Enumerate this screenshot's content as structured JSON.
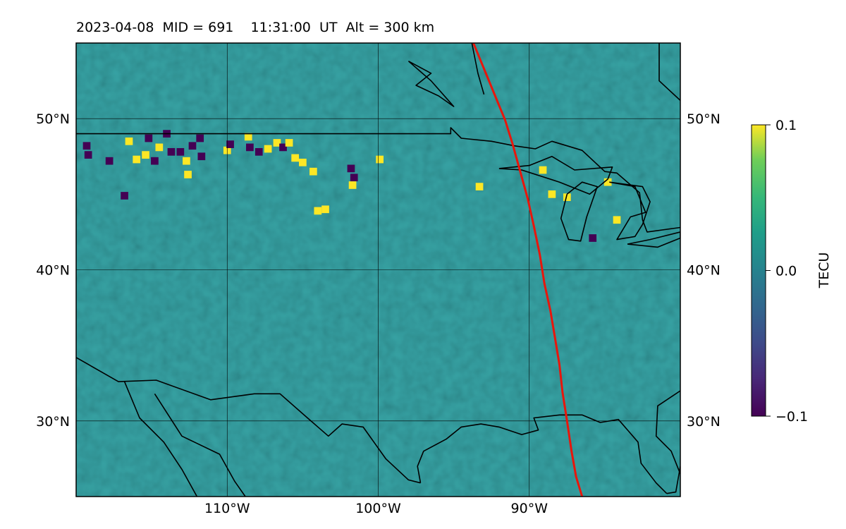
{
  "title": "2023-04-08  MID = 691    11:31:00  UT  Alt = 300 km",
  "map": {
    "lon_range": [
      -120,
      -80
    ],
    "lat_range": [
      25,
      55
    ],
    "lon_ticks": [
      {
        "value": -110,
        "label": "110°W"
      },
      {
        "value": -100,
        "label": "100°W"
      },
      {
        "value": -90,
        "label": "90°W"
      }
    ],
    "lat_ticks": [
      {
        "value": 50,
        "label": "50°N"
      },
      {
        "value": 40,
        "label": "40°N"
      },
      {
        "value": 30,
        "label": "30°N"
      }
    ],
    "background_color": "#2d8a8c",
    "totality_path_color": "#e8160c",
    "totality_path": [
      [
        -93.7,
        55.0
      ],
      [
        -93.0,
        53.3
      ],
      [
        -92.3,
        51.6
      ],
      [
        -91.6,
        49.9
      ],
      [
        -91.1,
        48.3
      ],
      [
        -90.6,
        46.5
      ],
      [
        -90.1,
        44.7
      ],
      [
        -89.7,
        42.9
      ],
      [
        -89.3,
        41.0
      ],
      [
        -89.0,
        39.1
      ],
      [
        -88.6,
        37.3
      ],
      [
        -88.3,
        35.5
      ],
      [
        -88.0,
        33.7
      ],
      [
        -87.8,
        31.9
      ],
      [
        -87.5,
        30.0
      ],
      [
        -87.2,
        28.0
      ],
      [
        -86.9,
        26.3
      ],
      [
        -86.5,
        25.0
      ]
    ],
    "borders": [
      [
        [
          -120,
          49.0
        ],
        [
          -95.2,
          49.0
        ],
        [
          -95.2,
          49.4
        ],
        [
          -94.5,
          48.7
        ],
        [
          -92.5,
          48.5
        ],
        [
          -91.0,
          48.2
        ],
        [
          -89.6,
          48.0
        ],
        [
          -88.5,
          48.5
        ],
        [
          -86.5,
          47.9
        ],
        [
          -85.0,
          46.5
        ],
        [
          -84.2,
          46.4
        ],
        [
          -82.7,
          45.1
        ],
        [
          -82.5,
          43.3
        ],
        [
          -82.2,
          42.5
        ],
        [
          -80,
          42.8
        ]
      ],
      [
        [
          -120,
          34.2
        ],
        [
          -117.2,
          32.6
        ],
        [
          -114.7,
          32.7
        ],
        [
          -111.1,
          31.4
        ],
        [
          -108.2,
          31.8
        ],
        [
          -106.5,
          31.8
        ],
        [
          -104.8,
          30.3
        ],
        [
          -103.3,
          29.0
        ],
        [
          -102.4,
          29.8
        ],
        [
          -101.0,
          29.6
        ],
        [
          -99.5,
          27.5
        ],
        [
          -98.0,
          26.1
        ],
        [
          -97.2,
          25.9
        ]
      ],
      [
        [
          -116.8,
          32.6
        ],
        [
          -115.8,
          30.2
        ],
        [
          -114.2,
          28.6
        ],
        [
          -113.0,
          26.8
        ],
        [
          -112.0,
          25.0
        ]
      ],
      [
        [
          -114.8,
          31.8
        ],
        [
          -113.0,
          29.0
        ],
        [
          -110.5,
          27.8
        ],
        [
          -109.5,
          26.0
        ],
        [
          -108.8,
          25.0
        ]
      ],
      [
        [
          -97.2,
          25.9
        ],
        [
          -97.4,
          27.0
        ],
        [
          -97.0,
          28.0
        ],
        [
          -95.5,
          28.8
        ],
        [
          -94.5,
          29.6
        ],
        [
          -93.2,
          29.8
        ],
        [
          -92.0,
          29.6
        ],
        [
          -90.5,
          29.1
        ],
        [
          -89.4,
          29.4
        ],
        [
          -89.7,
          30.2
        ],
        [
          -88.0,
          30.4
        ],
        [
          -86.5,
          30.4
        ],
        [
          -85.3,
          29.9
        ],
        [
          -84.1,
          30.1
        ],
        [
          -82.8,
          28.6
        ],
        [
          -82.6,
          27.2
        ],
        [
          -81.6,
          25.9
        ],
        [
          -80.9,
          25.2
        ]
      ],
      [
        [
          -80,
          27.0
        ],
        [
          -80.3,
          25.3
        ],
        [
          -80.9,
          25.2
        ]
      ],
      [
        [
          -80,
          32.0
        ],
        [
          -81.5,
          31.0
        ],
        [
          -81.6,
          29.0
        ],
        [
          -80.6,
          28.0
        ],
        [
          -80.0,
          26.5
        ]
      ],
      [
        [
          -93.8,
          55.0
        ],
        [
          -93.4,
          53.0
        ],
        [
          -93.0,
          51.6
        ]
      ],
      [
        [
          -81.4,
          55.0
        ],
        [
          -81.4,
          52.5
        ],
        [
          -80,
          51.2
        ]
      ],
      [
        [
          -98.0,
          53.8
        ],
        [
          -96.5,
          53.0
        ],
        [
          -97.5,
          52.2
        ],
        [
          -96.0,
          51.5
        ],
        [
          -95.0,
          50.8
        ],
        [
          -96.5,
          52.5
        ],
        [
          -98.0,
          53.8
        ]
      ],
      [
        [
          -92.0,
          46.7
        ],
        [
          -90.0,
          46.9
        ],
        [
          -88.5,
          47.5
        ],
        [
          -87.0,
          46.6
        ],
        [
          -84.5,
          46.8
        ],
        [
          -84.8,
          46.0
        ],
        [
          -86.0,
          45.0
        ],
        [
          -88.0,
          45.8
        ],
        [
          -90.5,
          46.6
        ],
        [
          -92.0,
          46.7
        ]
      ],
      [
        [
          -87.5,
          45.0
        ],
        [
          -87.9,
          43.4
        ],
        [
          -87.4,
          42.0
        ],
        [
          -86.6,
          41.9
        ],
        [
          -86.2,
          43.5
        ],
        [
          -85.5,
          45.5
        ],
        [
          -86.5,
          45.8
        ],
        [
          -87.5,
          45.0
        ]
      ],
      [
        [
          -84.7,
          45.8
        ],
        [
          -83.0,
          45.5
        ],
        [
          -82.3,
          43.8
        ],
        [
          -83.3,
          43.5
        ],
        [
          -84.2,
          42.0
        ],
        [
          -83.0,
          42.2
        ],
        [
          -82.5,
          43.0
        ],
        [
          -82.0,
          44.5
        ],
        [
          -82.5,
          45.5
        ],
        [
          -84.7,
          45.8
        ]
      ],
      [
        [
          -83.5,
          41.7
        ],
        [
          -81.5,
          41.5
        ],
        [
          -80,
          42.1
        ],
        [
          -80,
          42.5
        ],
        [
          -82.0,
          42.0
        ],
        [
          -83.5,
          41.7
        ]
      ]
    ],
    "anomalies": [
      [
        -119.3,
        48.2,
        -1
      ],
      [
        -119.2,
        47.6,
        -1
      ],
      [
        -117.8,
        47.2,
        -1
      ],
      [
        -116.5,
        48.5,
        1
      ],
      [
        -116.0,
        47.3,
        1
      ],
      [
        -115.4,
        47.6,
        1
      ],
      [
        -115.2,
        48.7,
        -1
      ],
      [
        -114.8,
        47.2,
        -1
      ],
      [
        -114.5,
        48.1,
        1
      ],
      [
        -114.0,
        49.0,
        -1
      ],
      [
        -113.7,
        47.8,
        -1
      ],
      [
        -113.1,
        47.8,
        -1
      ],
      [
        -112.7,
        47.2,
        1
      ],
      [
        -112.6,
        46.3,
        1
      ],
      [
        -112.3,
        48.2,
        -1
      ],
      [
        -111.8,
        48.7,
        -1
      ],
      [
        -111.7,
        47.5,
        -1
      ],
      [
        -110.0,
        47.9,
        1
      ],
      [
        -109.8,
        48.3,
        -1
      ],
      [
        -108.6,
        48.8,
        1
      ],
      [
        -108.5,
        48.1,
        -1
      ],
      [
        -107.9,
        47.8,
        -1
      ],
      [
        -107.3,
        48.0,
        1
      ],
      [
        -106.7,
        48.4,
        1
      ],
      [
        -106.3,
        48.1,
        -1
      ],
      [
        -105.9,
        48.4,
        1
      ],
      [
        -105.5,
        47.4,
        1
      ],
      [
        -105.0,
        47.1,
        1
      ],
      [
        -104.3,
        46.5,
        1
      ],
      [
        -104.0,
        43.9,
        1
      ],
      [
        -103.5,
        44.0,
        1
      ],
      [
        -101.6,
        46.1,
        -1
      ],
      [
        -101.7,
        45.6,
        1
      ],
      [
        -99.9,
        47.3,
        1
      ],
      [
        -93.3,
        45.5,
        1
      ],
      [
        -88.5,
        45.0,
        1
      ],
      [
        -87.5,
        44.8,
        1
      ],
      [
        -84.8,
        45.8,
        1
      ],
      [
        -84.2,
        43.3,
        1
      ],
      [
        -85.8,
        42.1,
        -1
      ],
      [
        -89.1,
        46.6,
        1
      ],
      [
        -101.8,
        46.7,
        -1
      ],
      [
        -116.8,
        44.9,
        -1
      ]
    ]
  },
  "colorbar": {
    "label": "TECU",
    "min": -0.1,
    "max": 0.1,
    "ticks": [
      {
        "value": 0.1,
        "label": "0.1"
      },
      {
        "value": 0.0,
        "label": "0.0"
      },
      {
        "value": -0.1,
        "label": "−0.1"
      }
    ],
    "colormap": "viridis"
  }
}
